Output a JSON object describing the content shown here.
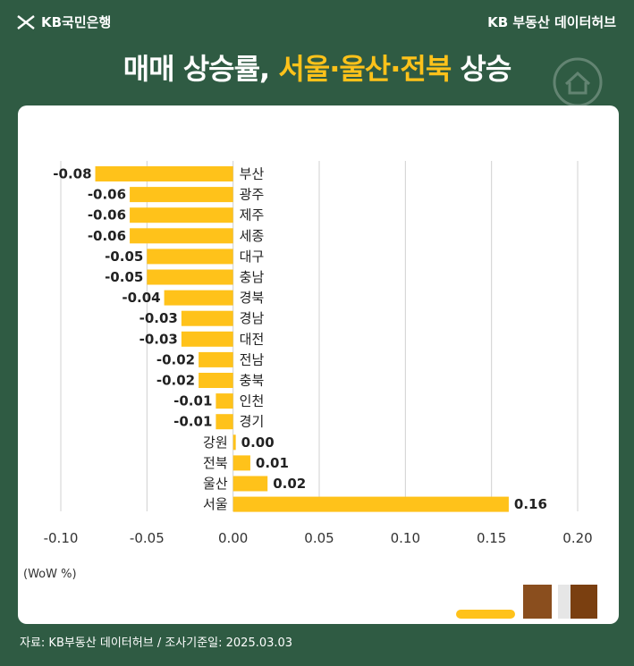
{
  "header": {
    "brand": "KB국민은행",
    "hub": "KB 부동산 데이터허브",
    "title_main": "매매 상승률,",
    "title_highlight": "서울·울산·전북",
    "title_tail": "상승"
  },
  "unit_label": "(WoW %)",
  "source": "자료: KB부동산 데이터허브 / 조사기준일: 2025.03.03",
  "colors": {
    "bar": "#ffc21a",
    "background": "#2f5b43",
    "panel": "#ffffff"
  },
  "chart_data": {
    "type": "bar",
    "orientation": "horizontal",
    "categories": [
      "부산",
      "광주",
      "제주",
      "세종",
      "대구",
      "충남",
      "경북",
      "경남",
      "대전",
      "전남",
      "충북",
      "인천",
      "경기",
      "강원",
      "전북",
      "울산",
      "서울"
    ],
    "values": [
      -0.08,
      -0.06,
      -0.06,
      -0.06,
      -0.05,
      -0.05,
      -0.04,
      -0.03,
      -0.03,
      -0.02,
      -0.02,
      -0.01,
      -0.01,
      0.0,
      0.01,
      0.02,
      0.16
    ],
    "value_labels": [
      "-0.08",
      "-0.06",
      "-0.06",
      "-0.06",
      "-0.05",
      "-0.05",
      "-0.04",
      "-0.03",
      "-0.03",
      "-0.02",
      "-0.02",
      "-0.01",
      "-0.01",
      "0.00",
      "0.01",
      "0.02",
      "0.16"
    ],
    "xlim": [
      -0.1,
      0.2
    ],
    "xticks": [
      "-0.10",
      "-0.05",
      "0.00",
      "0.05",
      "0.10",
      "0.15",
      "0.20"
    ],
    "grid": true
  }
}
